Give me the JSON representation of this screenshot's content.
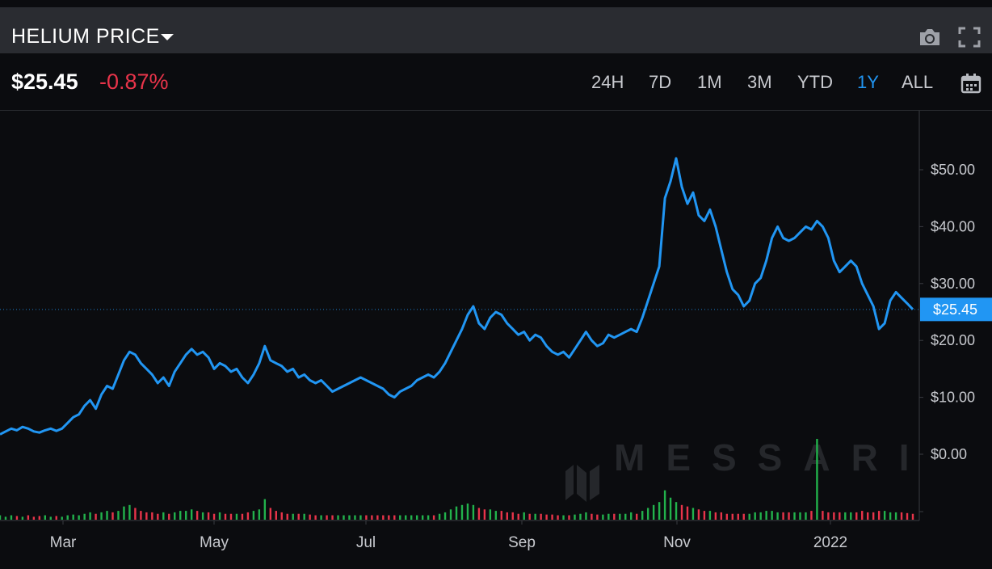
{
  "header": {
    "title": "HELIUM PRICE"
  },
  "quote": {
    "price": "$25.45",
    "change": "-0.87%"
  },
  "ranges": [
    "24H",
    "7D",
    "1M",
    "3M",
    "YTD",
    "1Y",
    "ALL"
  ],
  "active_range": "1Y",
  "icons": {
    "camera": "camera-icon",
    "fullscreen": "fullscreen-icon",
    "dropdown": "caret-down-icon",
    "calendar": "calendar-icon"
  },
  "colors": {
    "line": "#2196f3",
    "up": "#22b24c",
    "down": "#e8344a",
    "background": "#0b0c0f",
    "titlebar": "#2a2c31"
  },
  "watermark": "MESSARI",
  "chart_data": {
    "type": "line",
    "x_labels": [
      "Mar",
      "May",
      "Jul",
      "Sep",
      "Nov",
      "2022"
    ],
    "y_tick_labels": [
      "$50.00",
      "$40.00",
      "$30.00",
      "$20.00",
      "$10.00",
      "$0.00"
    ],
    "ylim": [
      -10,
      60
    ],
    "last_price_label": "$25.45",
    "last_price": 25.45,
    "series": [
      {
        "values": [
          3.5,
          4.0,
          4.5,
          4.2,
          4.8,
          4.5,
          4.0,
          3.8,
          4.2,
          4.5,
          4.1,
          4.5,
          5.5,
          6.5,
          7.0,
          8.5,
          9.5,
          8.0,
          10.5,
          12.0,
          11.5,
          14.0,
          16.5,
          18.0,
          17.5,
          16.0,
          15.0,
          14.0,
          12.5,
          13.5,
          12.0,
          14.5,
          16.0,
          17.5,
          18.5,
          17.5,
          18.0,
          17.0,
          15.0,
          16.0,
          15.5,
          14.5,
          15.0,
          13.5,
          12.5,
          14.0,
          16.0,
          19.0,
          16.5,
          16.0,
          15.5,
          14.5,
          15.0,
          13.5,
          14.0,
          13.0,
          12.5,
          13.0,
          12.0,
          11.0,
          11.5,
          12.0,
          12.5,
          13.0,
          13.5,
          13.0,
          12.5,
          12.0,
          11.5,
          10.5,
          10.0,
          11.0,
          11.5,
          12.0,
          13.0,
          13.5,
          14.0,
          13.5,
          14.5,
          16.0,
          18.0,
          20.0,
          22.0,
          24.5,
          26.0,
          23.0,
          22.0,
          24.0,
          25.0,
          24.5,
          23.0,
          22.0,
          21.0,
          21.5,
          20.0,
          21.0,
          20.5,
          19.0,
          18.0,
          17.5,
          18.0,
          17.0,
          18.5,
          20.0,
          21.5,
          20.0,
          19.0,
          19.5,
          21.0,
          20.5,
          21.0,
          21.5,
          22.0,
          21.5,
          24.0,
          27.0,
          30.0,
          33.0,
          45.0,
          48.0,
          52.0,
          47.0,
          44.0,
          46.0,
          42.0,
          41.0,
          43.0,
          40.0,
          36.0,
          32.0,
          29.0,
          28.0,
          26.0,
          27.0,
          30.0,
          31.0,
          34.0,
          38.0,
          40.0,
          38.0,
          37.5,
          38.0,
          39.0,
          40.0,
          39.5,
          41.0,
          40.0,
          38.0,
          34.0,
          32.0,
          33.0,
          34.0,
          33.0,
          30.0,
          28.0,
          26.0,
          22.0,
          23.0,
          27.0,
          28.5,
          27.5,
          26.5,
          25.45
        ],
        "volumes": [
          0.3,
          0.2,
          0.3,
          0.25,
          0.2,
          0.3,
          0.2,
          0.25,
          0.3,
          0.2,
          0.25,
          0.2,
          0.3,
          0.35,
          0.3,
          0.4,
          0.5,
          0.4,
          0.5,
          0.6,
          0.5,
          0.6,
          0.9,
          1.0,
          0.8,
          0.6,
          0.5,
          0.5,
          0.4,
          0.5,
          0.4,
          0.5,
          0.6,
          0.6,
          0.7,
          0.6,
          0.5,
          0.5,
          0.4,
          0.5,
          0.4,
          0.4,
          0.4,
          0.4,
          0.5,
          0.6,
          0.7,
          1.4,
          0.8,
          0.6,
          0.5,
          0.4,
          0.4,
          0.4,
          0.4,
          0.35,
          0.3,
          0.3,
          0.3,
          0.3,
          0.3,
          0.3,
          0.3,
          0.3,
          0.3,
          0.3,
          0.3,
          0.3,
          0.3,
          0.3,
          0.3,
          0.3,
          0.3,
          0.3,
          0.3,
          0.3,
          0.3,
          0.3,
          0.4,
          0.5,
          0.7,
          0.9,
          1.0,
          1.1,
          1.0,
          0.8,
          0.7,
          0.7,
          0.6,
          0.6,
          0.5,
          0.5,
          0.4,
          0.5,
          0.4,
          0.4,
          0.4,
          0.35,
          0.35,
          0.3,
          0.3,
          0.3,
          0.35,
          0.4,
          0.5,
          0.4,
          0.35,
          0.35,
          0.4,
          0.4,
          0.4,
          0.4,
          0.5,
          0.4,
          0.6,
          0.8,
          1.0,
          1.2,
          2.0,
          1.5,
          1.2,
          1.0,
          0.9,
          0.8,
          0.7,
          0.6,
          0.6,
          0.5,
          0.5,
          0.4,
          0.4,
          0.4,
          0.4,
          0.4,
          0.5,
          0.5,
          0.6,
          0.6,
          0.5,
          0.5,
          0.5,
          0.5,
          0.5,
          0.5,
          0.6,
          5.5,
          0.6,
          0.5,
          0.5,
          0.5,
          0.5,
          0.5,
          0.5,
          0.6,
          0.5,
          0.5,
          0.6,
          0.6,
          0.5,
          0.5,
          0.5,
          0.45,
          0.4
        ]
      }
    ]
  }
}
